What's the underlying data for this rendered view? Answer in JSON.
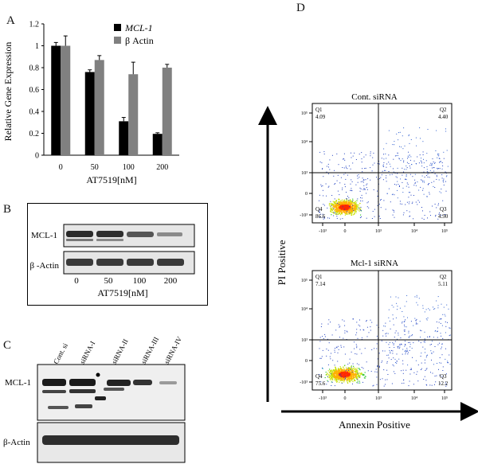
{
  "panels": {
    "a": "A",
    "b": "B",
    "c": "C",
    "d": "D"
  },
  "panel_a": {
    "ylabel": "Relative Gene Expression",
    "xlabel": "AT7519[nM]",
    "legend": [
      "MCL-1",
      "β Actin"
    ]
  },
  "chart_data": {
    "type": "bar",
    "categories": [
      "0",
      "50",
      "100",
      "200"
    ],
    "series": [
      {
        "name": "MCL-1",
        "values": [
          1.0,
          0.76,
          0.31,
          0.195
        ],
        "errors": [
          0.03,
          0.02,
          0.035,
          0.01
        ],
        "color": "#000000"
      },
      {
        "name": "β Actin",
        "values": [
          1.0,
          0.87,
          0.74,
          0.8
        ],
        "errors": [
          0.09,
          0.04,
          0.11,
          0.03
        ],
        "color": "#808080"
      }
    ],
    "xlabel": "AT7519[nM]",
    "ylabel": "Relative Gene Expression",
    "ylim": [
      0,
      1.2
    ],
    "yticks": [
      "0",
      "0.2",
      "0.4",
      "0.6",
      "0.8",
      "1",
      "1.2"
    ]
  },
  "panel_b": {
    "rows": [
      "MCL-1",
      "β -Actin"
    ],
    "lanes": [
      "0",
      "50",
      "100",
      "200"
    ],
    "xlabel": "AT7519[nM]"
  },
  "panel_c": {
    "lanes": [
      "Cont. si",
      "siRNA-I",
      "siRNA-II",
      "siRNA-III",
      "siRNA-IV"
    ],
    "rows": [
      "MCL-1",
      "β-Actin"
    ]
  },
  "panel_d": {
    "ylabel": "PI Positive",
    "xlabel": "Annexin Positive",
    "plots": [
      {
        "title": "Cont. siRNA",
        "quadrants": [
          {
            "label": "Q1",
            "value": "4.09"
          },
          {
            "label": "Q2",
            "value": "4.40"
          },
          {
            "label": "Q3",
            "value": "4.90"
          },
          {
            "label": "Q4",
            "value": "86.6"
          }
        ]
      },
      {
        "title": "Mcl-1 siRNA",
        "quadrants": [
          {
            "label": "Q1",
            "value": "7.14"
          },
          {
            "label": "Q2",
            "value": "5.11"
          },
          {
            "label": "Q3",
            "value": "12.2"
          },
          {
            "label": "Q4",
            "value": "75.6"
          }
        ]
      }
    ],
    "xticks": [
      "-10³",
      "0",
      "10³",
      "10⁴",
      "10⁵"
    ],
    "yticks": [
      "10⁵",
      "10⁴",
      "10³",
      "0",
      "-10³"
    ]
  }
}
